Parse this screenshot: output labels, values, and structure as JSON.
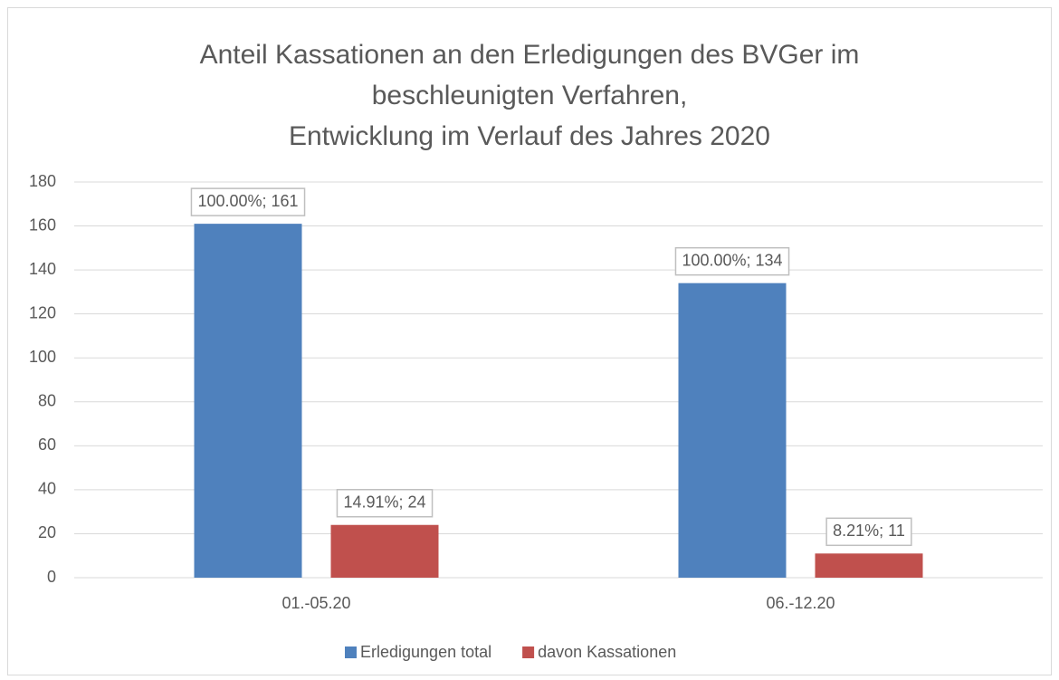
{
  "chart_data": {
    "type": "bar",
    "title": [
      "Anteil Kassationen an den Erledigungen des BVGer im",
      "beschleunigten Verfahren,",
      "Entwicklung im Verlauf des Jahres 2020"
    ],
    "categories": [
      "01.-05.20",
      "06.-12.20"
    ],
    "series": [
      {
        "name": "Erledigungen total",
        "color": "#4f81bd",
        "values": [
          161,
          134
        ],
        "value_labels": [
          "100.00%; 161",
          "100.00%; 134"
        ]
      },
      {
        "name": "davon Kassationen",
        "color": "#c0504d",
        "values": [
          24,
          11
        ],
        "value_labels": [
          "14.91%; 24",
          "8.21%; 11"
        ]
      }
    ],
    "ylim": [
      0,
      180
    ],
    "yticks": [
      0,
      20,
      40,
      60,
      80,
      100,
      120,
      140,
      160,
      180
    ],
    "grid": true,
    "legend": "bottom"
  }
}
